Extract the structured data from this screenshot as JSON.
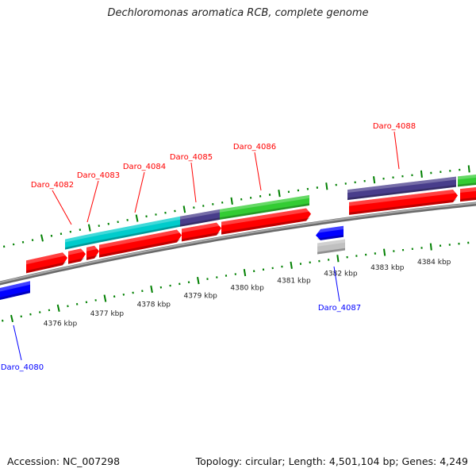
{
  "title": "Dechloromonas aromatica RCB, complete genome",
  "footer": {
    "accession": "Accession: NC_007298",
    "topology": "Topology: circular; Length: 4,501,104 bp; Genes: 4,249"
  },
  "colors": {
    "forward_gene": "#ff0000",
    "reverse_gene": "#0000ff",
    "cds_cyan": "#00cccc",
    "cds_purple": "#483d8b",
    "cds_green": "#33cc33",
    "other_gene": "#c0c0c0",
    "backbone": "#8c8c8c",
    "ticks": "#008000"
  },
  "scale": {
    "unit": "kbp",
    "labels": [
      "4376 kbp",
      "4377 kbp",
      "4378 kbp",
      "4379 kbp",
      "4380 kbp",
      "4381 kbp",
      "4382 kbp",
      "4383 kbp",
      "4384 kbp"
    ]
  },
  "gene_labels": [
    {
      "name": "Daro_4082",
      "strand": "forward"
    },
    {
      "name": "Daro_4083",
      "strand": "forward"
    },
    {
      "name": "Daro_4084",
      "strand": "forward"
    },
    {
      "name": "Daro_4085",
      "strand": "forward"
    },
    {
      "name": "Daro_4086",
      "strand": "forward"
    },
    {
      "name": "Daro_4088",
      "strand": "forward"
    },
    {
      "name": "Daro_4087",
      "strand": "reverse"
    },
    {
      "name": "Daro_4080",
      "strand": "reverse"
    }
  ]
}
